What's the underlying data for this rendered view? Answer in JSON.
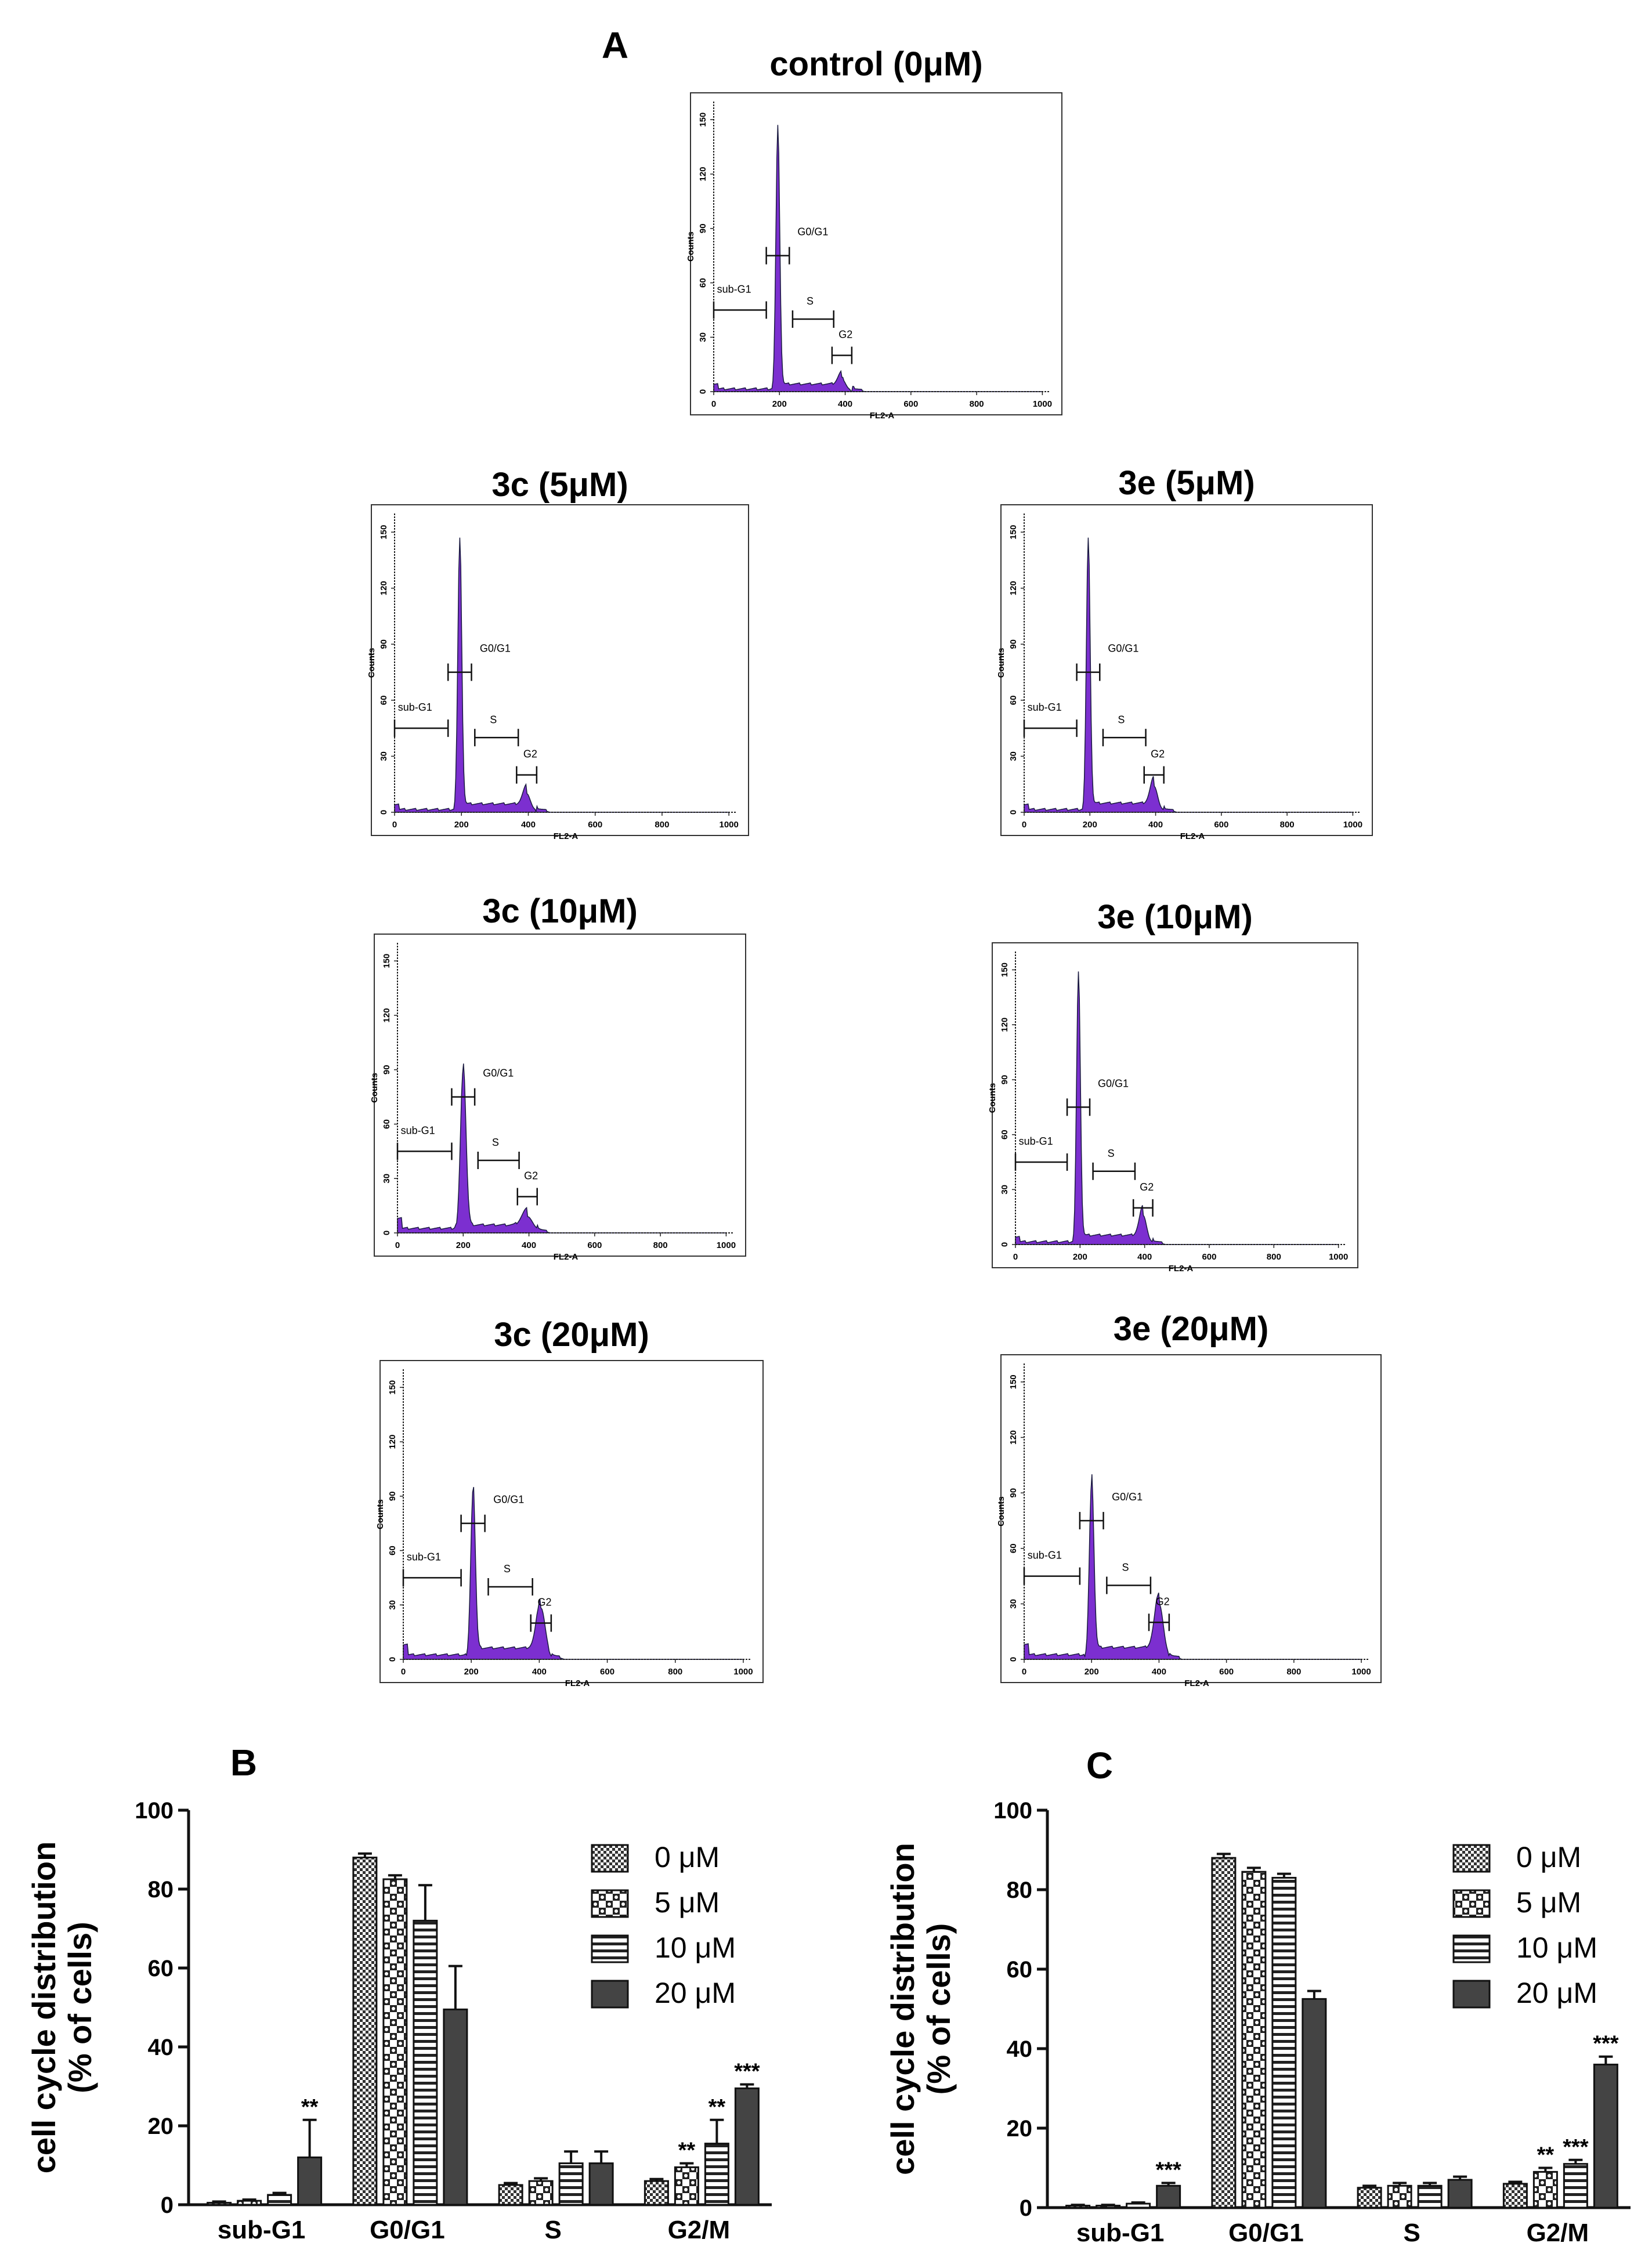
{
  "figure": {
    "panel_labels": {
      "a": "A",
      "b": "B",
      "c": "C"
    }
  },
  "histogram_common": {
    "x_axis_label": "FL2-A",
    "y_axis_label": "Counts",
    "x_ticks": [
      0,
      200,
      400,
      600,
      800,
      1000
    ],
    "y_ticks": [
      0,
      30,
      60,
      90,
      120,
      150
    ],
    "gate_labels": {
      "subg1": "sub-G1",
      "g0g1": "G0/G1",
      "s": "S",
      "g2": "G2"
    },
    "fill_color": "#7c2fd0",
    "xlim": [
      0,
      1024
    ],
    "ylim": [
      0,
      160
    ]
  },
  "chart_data": [
    {
      "type": "histogram",
      "id": "control",
      "title": "control (0μM)",
      "g1_peak_x": 195,
      "g1_peak_height": 146,
      "g2_peak_x": 390,
      "g2_peak_height": 7,
      "peak_width": 14,
      "subg1_level": 1
    },
    {
      "type": "histogram",
      "id": "3c_5",
      "title": "3c (5μM)",
      "g1_peak_x": 195,
      "g1_peak_height": 146,
      "g2_peak_x": 395,
      "g2_peak_height": 10,
      "peak_width": 14,
      "subg1_level": 1
    },
    {
      "type": "histogram",
      "id": "3e_5",
      "title": "3e (5μM)",
      "g1_peak_x": 195,
      "g1_peak_height": 146,
      "g2_peak_x": 395,
      "g2_peak_height": 14,
      "peak_width": 14,
      "subg1_level": 1
    },
    {
      "type": "histogram",
      "id": "3c_10",
      "title": "3c (10μM)",
      "g1_peak_x": 200,
      "g1_peak_height": 90,
      "g2_peak_x": 395,
      "g2_peak_height": 9,
      "peak_width": 20,
      "subg1_level": 2
    },
    {
      "type": "histogram",
      "id": "3e_10",
      "title": "3e (10μM)",
      "g1_peak_x": 195,
      "g1_peak_height": 148,
      "g2_peak_x": 395,
      "g2_peak_height": 16,
      "peak_width": 14,
      "subg1_level": 1
    },
    {
      "type": "histogram",
      "id": "3c_20",
      "title": "3c (20μM)",
      "g1_peak_x": 205,
      "g1_peak_height": 93,
      "g2_peak_x": 405,
      "g2_peak_height": 28,
      "peak_width": 16,
      "subg1_level": 2
    },
    {
      "type": "histogram",
      "id": "3e_20",
      "title": "3e (20μM)",
      "g1_peak_x": 200,
      "g1_peak_height": 95,
      "g2_peak_x": 400,
      "g2_peak_height": 30,
      "peak_width": 16,
      "subg1_level": 2
    },
    {
      "type": "bar",
      "id": "B",
      "title": "B",
      "ylabel_line1": "cell cycle distribution",
      "ylabel_line2": "(% of cells)",
      "categories": [
        "sub-G1",
        "G0/G1",
        "S",
        "G2/M"
      ],
      "ylim": [
        0,
        100
      ],
      "yticks": [
        0,
        20,
        40,
        60,
        80,
        100
      ],
      "series": [
        {
          "name": "0 μM",
          "values": [
            0.5,
            88,
            5,
            6
          ],
          "errors": [
            0.3,
            1,
            0.5,
            0.5
          ],
          "sig": [
            "",
            "",
            "",
            ""
          ]
        },
        {
          "name": "5 μM",
          "values": [
            1,
            82.5,
            6,
            9.5
          ],
          "errors": [
            0.3,
            1,
            0.7,
            1
          ],
          "sig": [
            "",
            "",
            "",
            "**"
          ]
        },
        {
          "name": "10 μM",
          "values": [
            2.5,
            72,
            10.5,
            15.5
          ],
          "errors": [
            0.5,
            9,
            3,
            6
          ],
          "sig": [
            "",
            "",
            "",
            "**"
          ]
        },
        {
          "name": "20 μM",
          "values": [
            12,
            49.5,
            10.5,
            29.5
          ],
          "errors": [
            9.5,
            11,
            3,
            1
          ],
          "sig": [
            "**",
            "",
            "",
            "***"
          ]
        }
      ]
    },
    {
      "type": "bar",
      "id": "C",
      "title": "C",
      "ylabel_line1": "cell cycle distribution",
      "ylabel_line2": "(% of cells)",
      "categories": [
        "sub-G1",
        "G0/G1",
        "S",
        "G2/M"
      ],
      "ylim": [
        0,
        100
      ],
      "yticks": [
        0,
        20,
        40,
        60,
        80,
        100
      ],
      "series": [
        {
          "name": "0 μM",
          "values": [
            0.5,
            88,
            5,
            6
          ],
          "errors": [
            0.2,
            1,
            0.5,
            0.5
          ],
          "sig": [
            "",
            "",
            "",
            ""
          ]
        },
        {
          "name": "5 μM",
          "values": [
            0.5,
            84.5,
            5.5,
            9
          ],
          "errors": [
            0.2,
            1,
            0.7,
            1
          ],
          "sig": [
            "",
            "",
            "",
            "**"
          ]
        },
        {
          "name": "10 μM",
          "values": [
            1,
            83,
            5.5,
            11
          ],
          "errors": [
            0.3,
            1,
            0.7,
            1
          ],
          "sig": [
            "",
            "",
            "",
            "***"
          ]
        },
        {
          "name": "20 μM",
          "values": [
            5.5,
            52.5,
            7,
            36
          ],
          "errors": [
            0.7,
            2,
            0.8,
            2
          ],
          "sig": [
            "***",
            "",
            "",
            "***"
          ]
        }
      ]
    }
  ]
}
